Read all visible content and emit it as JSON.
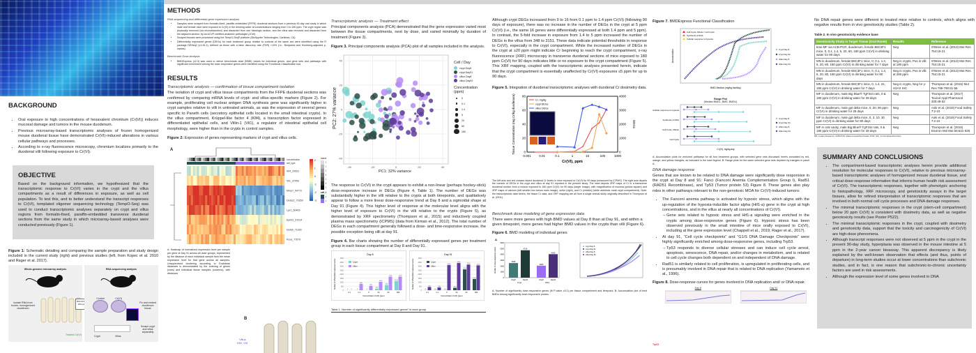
{
  "background": {
    "title": "BACKGROUND",
    "bullets": [
      "Oral exposure to high concentrations of hexavalent chromium (Cr(VI)) induces mucosal damage and tumors in the mouse duodenum.",
      "Previous microarray-based transcriptomic analyses of frozen homogenized mouse duodenal tissue have demonstrated Cr(VI)-induced alterations in various cellular pathways and processes.",
      "According to x-ray fluorescence microscopy, chromium localizes primarily to the duodenal villi following exposure to Cr(VI)."
    ]
  },
  "objective": {
    "title": "OBJECTIVE",
    "text": "Based on the background information, we hypothesized that the transcriptomic response to Cr(VI) varies in the crypt and the villus compartments as a result of differences in exposure, as well as cell population. To test this, and to better understand the transcript responses to Cr(VI), templated oligomer sequencing technology (TempO-Seq) was used to conduct transcriptomic analyses separately on crypt and villus regions from formalin-fixed, paraffin-embedded transverse duodenal sections from the same study in which microarray-based analyses were conducted previously (Figure 1)."
  },
  "figure1": {
    "label": "Figure 1:",
    "caption": "Schematic detailing and comparing the sample preparation and study design included in the current study (right) and previous studies (left, from Kopec et al. 2010 and Rager et al. 2017).",
    "left_title": "Whole-genome microarray analysis",
    "right_title": "RNA-sequencing analysis",
    "center_box": "B6C3F1 female mice 0-180 ppm Cr(VI) for 90 days",
    "left_step": "Isolate RNA from frozen, homogenized duodenum",
    "treated": "Treated Cr(VI)",
    "control": "Control",
    "crvi": "Cr(VI)",
    "fix": "Fix and embed duodenum tissue",
    "scrape": "Scrape crypt and villus separately",
    "crypt": "Crypt",
    "villus": "Villus"
  },
  "methods": {
    "title": "METHODS",
    "sub1": "RNA sequencing and differential gene expression analysis",
    "bullets1": [
      "Samples were scraped from formalin-fixed, paraffin-embedded (FFPE) duodenal sections from a previous 90-day oral study in which male and female mice were exposed to Cr(VI) in the drinking water at concentrations ranging from 0 to 180 ppm. The crypt region was physically removed (via microdissection) and discarded from one histologic section, and the villus was removed and discarded from the adjacent section, by an ACVP-certified anatomic pathologist (JCW).",
      "Scraped tissues were processed using the TempO-Seq® platform (BioSpyder Technologies, Carlsbad, CA).",
      "Differentially expressed genes (DEGs) for each treatment group relative to controls of the same sex were identified using the R package DESeq2 (v1.26.1), defined as those with a false discovery rate (FDR) <10% (i.e., Benjamini and Hochberg-adjusted p-values)."
    ],
    "sub2": "Benchmark Dose Analysis",
    "bullets2": [
      "BMDExpress (v2.3) was used to derive benchmark dose (BMD) values for individual genes, and gene sets and pathways with significant enrichment among the dose-responsive genes were identified using the Functional Classification tool."
    ]
  },
  "results": {
    "title": "RESULTS",
    "sub1": "Transcriptomic analysis — confirmation of tissue compartment isolation",
    "text1": "The isolation of crypt and villus tissue compartments from the FFPE duodenal sections was confirmed by comparing mRNA levels of crypt- and villus-specific markers (Figure 2). For example, proliferating cell nuclear antigen DNA synthesis gene was significantly higher in crypt samples relative to villi in untreated animals, as was the expression of several genes specific to Paneth cells (secretory epithelial cells located in the small intestinal crypts). In the villus compartment, Krüppel-like factor 4 (Klf4), a transcription factor expressed in differentiated epithelial cells, and Villin-1 (Vil1), a regulator of intestinal epithelial cell morphology, were higher than in the crypts in control samples."
  },
  "figure2": {
    "label": "Figure 2:",
    "caption": "Expression of genes representing markers of crypt and villus cells.",
    "panel_a": "A",
    "panel_b": "B",
    "genes": [
      "Klf4_29531",
      "Vil1_37059",
      "Mmp7_54772",
      "Defa22_70359",
      "Lyz1_60409",
      "Ephb2_67014",
      "Defa5_71930",
      "Pcna_77579"
    ],
    "legend_conc": "concentration",
    "conc_levels": [
      "0",
      "0.1",
      "1.4",
      "5",
      "20",
      "60",
      "180"
    ],
    "legend_cell": "cell_type",
    "cell_types": [
      "crypt",
      "villus"
    ],
    "scale": [
      "2",
      "1",
      "0",
      "-1",
      "-2",
      "-3"
    ],
    "annot1": "concentration",
    "annot2": "cell_type",
    "caption_a": "A: Heatmap of normalized expression level per sample per gene at Day 91 across all dose groups, represented by the distance of each individual sample from the mean expression level for that gene across all samples. Unsupervised clustering according to Euclidean distances is demonstrated by the ordering of genes (rows) and individual tissue samples (columns), with distances",
    "villus_label": "Villus",
    "villus_genes": "Klf4, Vil1"
  },
  "col3": {
    "sub1": "Transcriptomic analysis — Treatment effect",
    "text1": "Principal components analysis (PCA) demonstrated that the gene expression varied most between the tissue compartments, next by dose, and varied minimally by duration of treatment (Figure 3).",
    "text2": "The response to Cr(VI) in the crypt appears to exhibit a non-linear (perhaps hockey-stick) dose-responsive increase in DEGs (Figure 4, Table 1). The number of DEGs was substantially higher in the villi relative to the crypts at both timepoints, and qualitatively appear to follow a more linear dose-responsive trend at Day 8 and a sigmoidal shape at Day 91 (Figure 4). This higher level of response at the molecular level aligns with the higher level of exposure to Cr(VI) in the villi relative to the crypts (Figure 5), as demonstrated by XRF spectrometry (Thompson et al., 2015) and inductively coupled plasma mass spectrometry (ICPMS) (data from Kirman et al., 2012). The total number of DEGs in each compartment generally followed a dose- and time-responsive increase, the possible exception being villi at day 91.",
    "table1_caption": "Table 1. Number of significantly differentially expressed genes¹ in each group"
  },
  "figure3": {
    "label": "Figure 3.",
    "caption": "Principal components analysis (PCA) plot of all samples included in the analysis.",
    "xlabel": "PC1: 32% variance",
    "ylabel": "PC2: 27% variance",
    "xticks": [
      "-40",
      "-20",
      "0",
      "20",
      "40"
    ],
    "yticks": [
      "40",
      "20",
      "0",
      "-20",
      "-40"
    ],
    "legend_title": "Cell / Day",
    "groups": [
      "crypt Day8",
      "crypt Day91",
      "villus Day8",
      "villus Day91"
    ],
    "group_colors": [
      "#7fd3cf",
      "#2f4f4a",
      "#b58cf5",
      "#5e3c99"
    ],
    "conc_title": "Concentration (ppm)",
    "conc": [
      "0",
      "0.1",
      "1.4",
      "5",
      "20",
      "60",
      "180"
    ]
  },
  "figure4": {
    "label": "Figure 4.",
    "caption": "Bar charts showing the number of differentially expressed genes per treatment group in each tissue compartment at Day 8 and Day 91."
  },
  "col4": {
    "text1": "Although crypt DEGs increased from 9 to 16 from 0.1 ppm to 1.4 ppm Cr(VI) (following 90 days of exposure), there was no increase in the number of DEGs in the crypt at 5 ppm Cr(VI) (i.e., the same 16 genes were differentially expressed at both 1.4 ppm and 5 ppm). In contrast, the 5-fold increase in exposure from 1.4 to 5 ppm increased the number of DEGs in the villus from 348 to 3151. These data indicate potential thresholds in response to Cr(VI), especially in the crypt compartment. While the increased number of DEGs in the crypt at ≥20 ppm might indicate Cr beginning to reach the crypt compartment, x-ray fluorescence (XRF) microscopy in transverse duodenal sections of mice exposed to 180 ppm Cr(VI) for 90 days indicates little or no exposure to the crypt compartment (Figure 5). This XRF mapping, coupled with the transcriptomic analyses presented herein, indicate that the crypt compartment is essentially unaffected by Cr(VI) exposures ≤5 ppm for up to 90 days.",
    "fig5_label": "Figure 5.",
    "fig5_caption": "Integration of duodenal transcriptomic analyses with duodenal Cr dosimetry data.",
    "fig5_note": "The left axis and red crosses depict duodenal Cr levels in mice exposed to Cr(VI) for 90 days (measured by ICPMS). The right axis depicts the number of DEGs in the crypt and villus at day 91 reported in the present study. The inset depicts XRF maps of Cr in a transverse duodenal section from a mouse exposed to 180 ppm Cr(VI) for 90 days (larger image), with magnification of mucosa (yellow square) and XRF maps of calcium (left smaller box below main image), sulfur (right), and Cr (middle) (white asterisks mark crypt compartment). Note: the transcriptomic data herein, the tissue Cr data, and XRF mapping are all from a single animal study originally described in Thompson et al. (2011).",
    "sub2": "Benchmark dose modeling of gene expression data",
    "text2": "There were more genes with high BMD values at Day 8 than at Day 91, and within a given timepoint, more genes had higher BMD values in the crypts than villi (Figure 6).",
    "fig6_label": "Figure 6.",
    "fig6_caption": "BMD modeling of individual genes",
    "fig6_note": "A: Number of significantly dose-responsive genes (fit P-value ≥0.1) per tissue compartment and timepoint. B: Accumulation plot of best BMDs among significantly dose-responsive probes."
  },
  "figure5": {
    "ylabel": "Tissue Concentration (mg Cr/kg duodenum)",
    "y2label": "DEGs",
    "xlabel": "Cr(VI), ppm",
    "legend": [
      "Cr, mg/kg",
      "crypt DEGs",
      "villus DEGs"
    ],
    "xticks": [
      "0.001",
      "0.01",
      "0.1",
      "1",
      "10",
      "100",
      "1000"
    ],
    "yticks": [
      "0",
      "20",
      "40",
      "60",
      "80"
    ],
    "y2ticks": [
      "0",
      "1000",
      "2000",
      "3000",
      "4000"
    ]
  },
  "col5": {
    "fig7_label": "Figure 7.",
    "fig7_caption": "BMDExpress Functional Classification",
    "fig7_legend": [
      "Cell Cycle, Mitotic / Cell Cycle",
      "Synthesis of DNA",
      "Cellular response to hypoxia"
    ],
    "groups": [
      "crypt Day 8",
      "crypt Day 91",
      "villus Day 8",
      "villus Day 91"
    ],
    "fig7_xlabel": "BMD Median (mg/kg bw/day)",
    "fig7_ylabel": "Accumulation",
    "range_title": "Range Plot",
    "range_sub": "(Median BMDL, BMD, BMDU)",
    "range_rows": [
      "Cellular response to hypoxia",
      "Synthesis of DNA",
      "Cell Cycle, Mitotic",
      "Cell Cycle"
    ],
    "range_xlabel": "Cr(VI), mg/kg-day",
    "fig7_note": "A: Accumulation plots for enriched pathways for all four treatment groups, with selected gene sets discussed herein annotated by red, orange, and yellow triangles, as indicated in the inset legend. B: Range plots for the same selected gene sets depicted by triangles in panel A.",
    "sub": "DNA damage response",
    "text1": "Genes that are known to be related to DNA damage were significantly dose responsive in the crypt at Day 8 and 91: Fanci (Fanconi Anemia Complementation Group I), Rad51 (RAD51 Recombinase), and Tp53 (Tumor protein 53) Figure 8. These genes also play roles in other pathways relevant to the non-genotoxic MOA for Cr(VI)-induced tumors:",
    "bullets": [
      "The Fanconi anemia pathway is activated by hypoxic stress, which aligns with the up-regulation of the hypoxia-inducible factor alpha (Hif1-a) gene in the crypt at high concentrations, and in the villus at nearly all concentrations of Cr(VI).",
      "Gene sets related to hypoxic stress and Hif1-a signaling were enriched in the crypts among dose-responsive genes (Figure 6). Hypoxic stress has been observed previously in the small intestine of mice orally exposed to Cr(VI), including at the gene expression level (Chappell et al., 2019; Rager et al., 2017).",
      "At day 91, “Cell cycle checkpoints” and “G1/S DNA Damage Checkpoints” were highly significantly enriched among dose-responsive genes, including Trp53.",
      "Tp53 responds to diverse cellular stresses and can induce cell cycle arrest, apoptosis, senescence, DNA repair, and/or changes in metabolism, and is related to cell cycle changes both dependent on and independent of DNA damage.",
      "Rad51 is similarly related to cell proliferation, is upregulated in proliferating cells, and is presumably involved in DNA repair that is related to DNA replication (Yamamoto et al., 1996)."
    ],
    "fig8_label": "Figure 8.",
    "fig8_caption": "Dose-response curves for genes involved in DNA replication and/ or DNA repair.",
    "fig8_day8": "Day 8",
    "fig8_day91": "Day 91",
    "fig8_gene": "Trp53"
  },
  "col6": {
    "text1": "No DNA repair genes were different in treated mice relative to controls, which aligns with negative results from in vivo genotoxicity studies (Table 2).",
    "table_caption": "Table 2. In vivo genotoxicity evidence base",
    "headers": [
      "Genotoxicity Study in Target Tissue (Oral Route)",
      "Results",
      "Reference"
    ],
    "rows": [
      [
        "kras MF via ACB-PCR, duodenum, female B6C3F1 mice, 0, 0.1, 1.4, 5, 20, 60, 180 ppm Cr(VI) in drinking water for 90 days",
        "Neg",
        "O'Brien et al. (2013) Mut Res 754:15-21"
      ],
      [
        "MN in duodenum, female B6C3F1 mice, 0, 0.1, 1.4, 5, 20, 60, 180 ppm Cr(VI) in drinking water for 7 days",
        "Neg in crypts, Pos in villi at 180 ppm",
        "O'Brien et al. (2013) Mut Res 754:15-21"
      ],
      [
        "MN in duodenum, female B6C3F1 mice, 0, 0.1, 1.4, 5, 20, 60, 180 ppm Cr(VI) in drinking water for 90 days",
        "Neg in crypts, Pos in villi at 260 ppm",
        "O'Brien et al. (2013) Mut Res 754:15-21"
      ],
      [
        "MN in duodenum, female B6C3F1 mice, 0, 1.4, 21, 180 ppm Cr(VI) in drinking water for 7 days",
        "Neg in crypts, Neg for γ-H2AX IHC",
        "Thompson et al. (2015) Mut Res 789-790:61-66"
      ],
      [
        "MF in duodenum, male Big Blue® TgF344 rats, 0 & 180 ppm Cr(VI) in drinking water for 28 days",
        "Neg",
        "Thompson et al. (2017) Toxicol Appl Pharmacol 330:48-52"
      ],
      [
        "MF in duodenum, male gpt delta mice, 0, 30, 90 ppm Cr(VI) in drinking water for 28 days",
        "Neg",
        "Aoki et al. (2019) Food Safety 7:2-10"
      ],
      [
        "MF in duodenum, male gpt delta mice, 0, 3, 10, 30 ppm Cr(VI) in drinking water for 90 days",
        "Neg",
        "Aoki et al. (2019) Food Safety 7:2-10"
      ],
      [
        "MF in oral cavity, male Big Blue® TgF344 rats, 0 & 180 ppm Cr(VI) in drinking water for 28 days",
        "Neg",
        "Thompson et al. (2015) Environ Mol Mut 56:621-628"
      ]
    ],
    "footnote": "MF, mutant frequency; ACB-PCR, allele-competitive blocker PCR; IHC, immunohistochemistry"
  },
  "summary": {
    "title": "SUMMARY AND CONCLUSIONS",
    "bullets": [
      "The compartment-based transcriptomic analyses herein provide additional resolution for molecular responses to Cr(VI), relative to previous microarray-based transcriptomic analyses of homogenized mouse duodenal tissue, and critical dose-response information that informs human health risk assessment of Cr(VI). The transcriptomic responses, together with phenotypic anchoring to histopathology, XRF microscopy, and genotoxicity assays in the target tissues, allow for refined interpretation of transcriptomic responses that are involved in both normal cell cycle processes and DNA damage responses.",
      "The minimal transcriptomic responses in the crypt (stem-cell compartment) below 20 ppm Cr(VI) is consistent with dosimetry data, as well as negative genotoxicity results (see Poster P522).",
      "The minimal transcriptomic responses in the crypt, coupled with dosimetry and genotoxicity data, support that the toxicity and carcinogenicity of Cr(VI) are high-dose phenomena.",
      "Although transcript responses were not observed at 5 ppm in the crypt in the present 90-day study, hyperplasia was observed in the mouse intestine at 5 ppm in the 2-year cancer bioassay. This apparent discrepancy is likely explained by the well-known observation that effects (and thus, points of departure) in long-term studies occur at lower concentrations than subchronic studies, and in fact, is one reason that subchronic-to-chronic uncertainty factors are used in risk assessments.",
      "Although the expression level of some genes involved in DNA"
    ]
  },
  "chart_data": [
    {
      "id": "figure4-day8",
      "type": "bar",
      "title": "Day 8",
      "categories": [
        "0.1",
        "1.4",
        "5",
        "20",
        "60",
        "180"
      ],
      "xlabel": "Concentration Cr(VI) (ppm)",
      "ylabel": "Number of Differentially Expressed Genes",
      "ylim": [
        0,
        4000
      ],
      "series": [
        {
          "name": "Crypt",
          "color": "#7fd3cf",
          "values": [
            0,
            0,
            0,
            200,
            650,
            1150
          ]
        },
        {
          "name": "Villus",
          "color": "#b58cf5",
          "values": [
            0,
            800,
            550,
            1050,
            1700,
            1700
          ]
        }
      ]
    },
    {
      "id": "figure4-day91",
      "type": "bar",
      "title": "Day 91",
      "categories": [
        "0.1",
        "1.4",
        "5",
        "20",
        "60",
        "180"
      ],
      "xlabel": "Concentration Cr(VI) (ppm)",
      "ylabel": "Number of Differentially Expressed Genes",
      "ylim": [
        0,
        4000
      ],
      "series": [
        {
          "name": "Crypt",
          "color": "#2f4f4a",
          "values": [
            9,
            16,
            16,
            300,
            2600,
            1400
          ]
        },
        {
          "name": "Villus",
          "color": "#5e3c99",
          "values": [
            400,
            348,
            3151,
            3400,
            3200,
            3100
          ]
        }
      ]
    },
    {
      "id": "figure6a",
      "type": "bar",
      "title": "A",
      "categories": [
        "Day8",
        "Day91",
        "Day8",
        "Day91"
      ],
      "groups": [
        "Crypt",
        "Villus"
      ],
      "ylabel": "Number of Dose-Responsive Genes",
      "ylim": [
        0,
        6000
      ],
      "values": [
        2508,
        4714,
        2060,
        4040
      ],
      "colors": [
        "#3f7a74",
        "#1f3b37",
        "#9b6cf5",
        "#4a2f7a"
      ]
    }
  ]
}
